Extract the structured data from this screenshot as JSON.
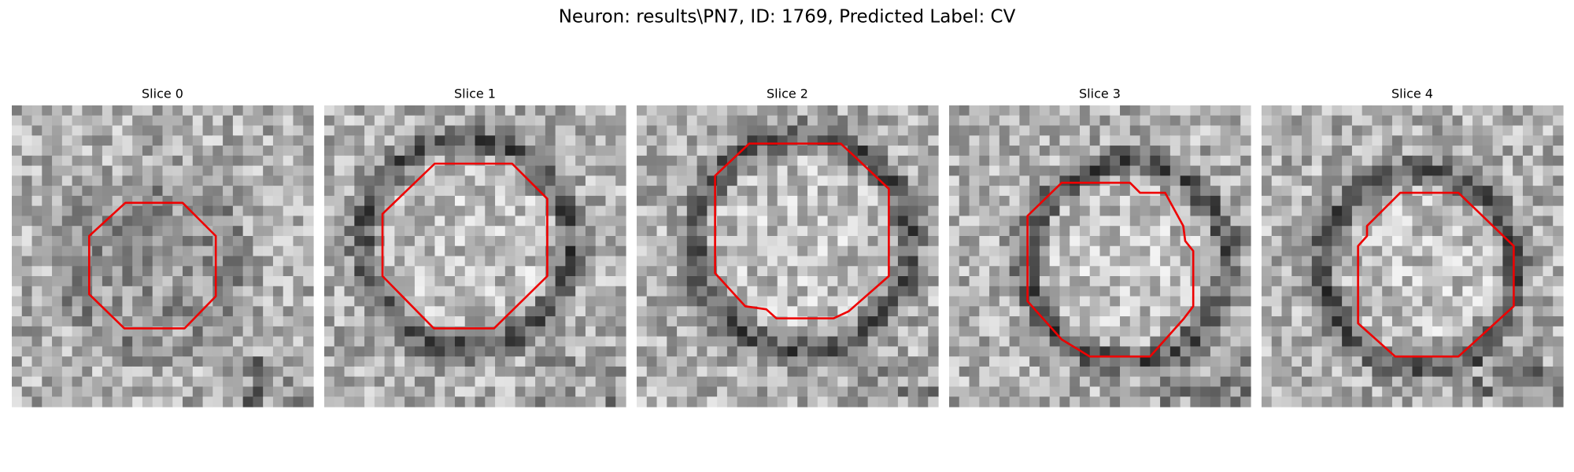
{
  "title": "Neuron: results\\PN7, ID: 1769, Predicted Label: CV",
  "panels": [
    {
      "title": "Slice 0"
    },
    {
      "title": "Slice 1"
    },
    {
      "title": "Slice 2"
    },
    {
      "title": "Slice 3"
    },
    {
      "title": "Slice 4"
    }
  ]
}
